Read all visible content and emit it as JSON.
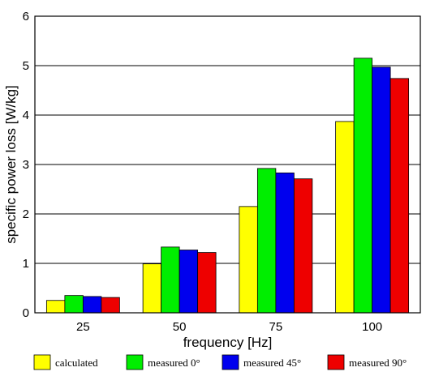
{
  "chart_data": {
    "type": "bar",
    "title": "",
    "xlabel": "frequency [Hz]",
    "ylabel": "specific power loss [W/kg]",
    "categories": [
      "25",
      "50",
      "75",
      "100"
    ],
    "ylim": [
      0,
      6
    ],
    "yticks": [
      "0",
      "1",
      "2",
      "3",
      "4",
      "5",
      "6"
    ],
    "grid": "horizontal",
    "legend_position": "bottom",
    "series": [
      {
        "name": "calculated",
        "color": "#ffff00",
        "values": [
          0.25,
          0.99,
          2.15,
          3.87
        ]
      },
      {
        "name": "measured 0°",
        "color": "#00ee00",
        "values": [
          0.35,
          1.33,
          2.92,
          5.15
        ]
      },
      {
        "name": "measured 45°",
        "color": "#0000ee",
        "values": [
          0.33,
          1.27,
          2.83,
          4.97
        ]
      },
      {
        "name": "measured 90°",
        "color": "#ee0000",
        "values": [
          0.31,
          1.22,
          2.71,
          4.74
        ]
      }
    ]
  }
}
